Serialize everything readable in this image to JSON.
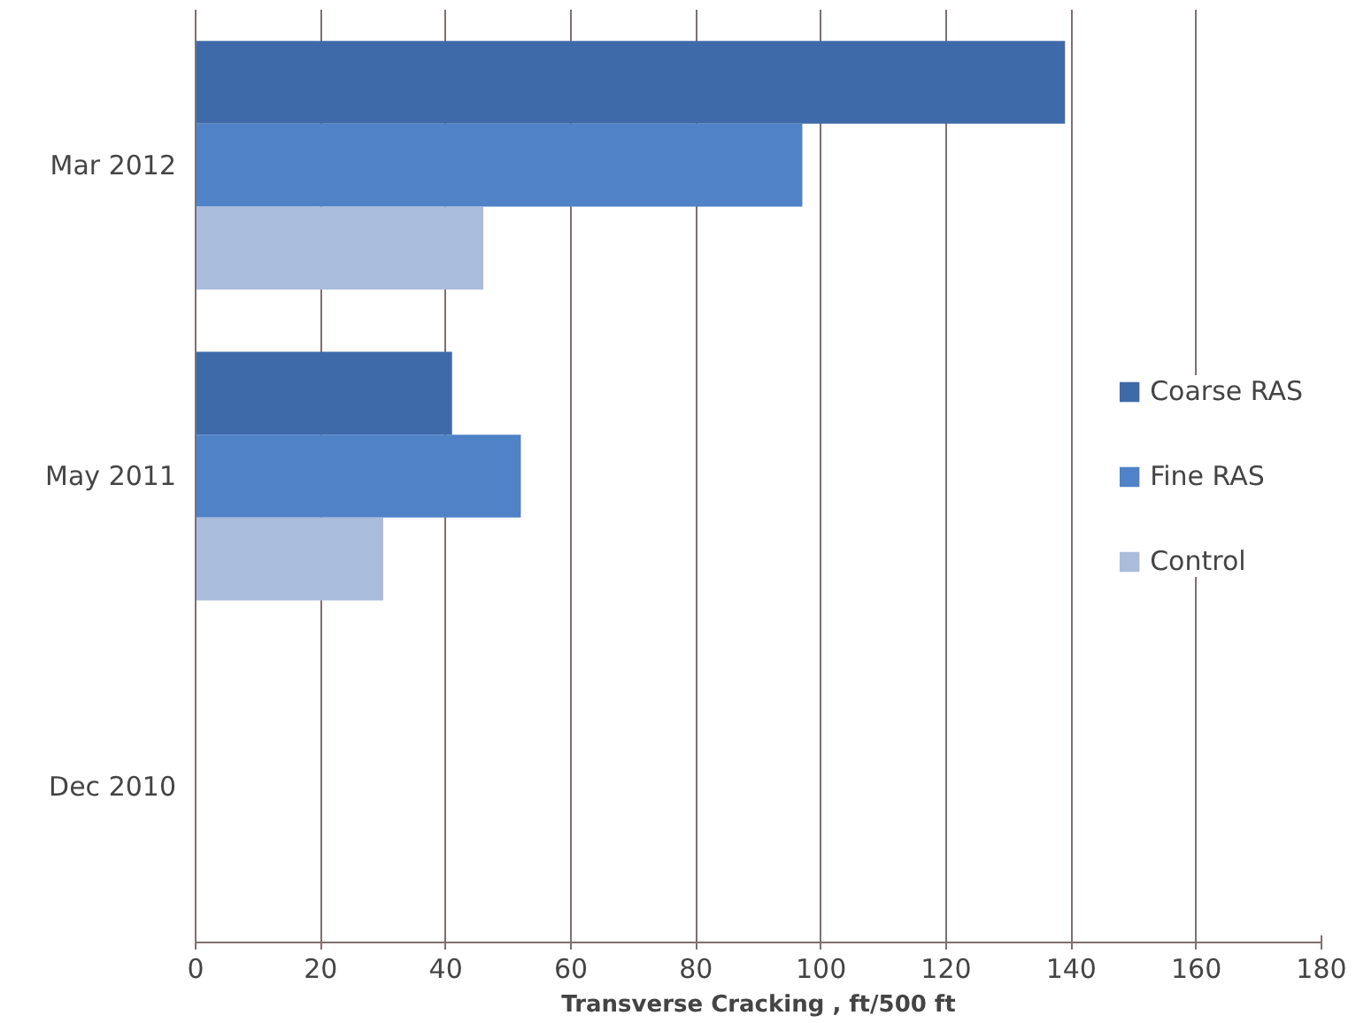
{
  "chart_data": {
    "type": "bar",
    "orientation": "horizontal",
    "xlabel": "Transverse Cracking , ft/500 ft",
    "categories": [
      "Mar 2012",
      "May 2011",
      "Dec 2010"
    ],
    "series": [
      {
        "name": "Coarse RAS",
        "color": "#3e6aaa",
        "values": [
          139,
          41,
          0
        ]
      },
      {
        "name": "Fine RAS",
        "color": "#4f82c6",
        "values": [
          97,
          52,
          0
        ]
      },
      {
        "name": "Control",
        "color": "#a9bcdc",
        "values": [
          46,
          30,
          0
        ]
      }
    ],
    "xlim": [
      0,
      180
    ],
    "xticks": [
      0,
      20,
      40,
      60,
      80,
      100,
      120,
      140,
      160,
      180
    ],
    "grid": "x",
    "legend": "right"
  }
}
